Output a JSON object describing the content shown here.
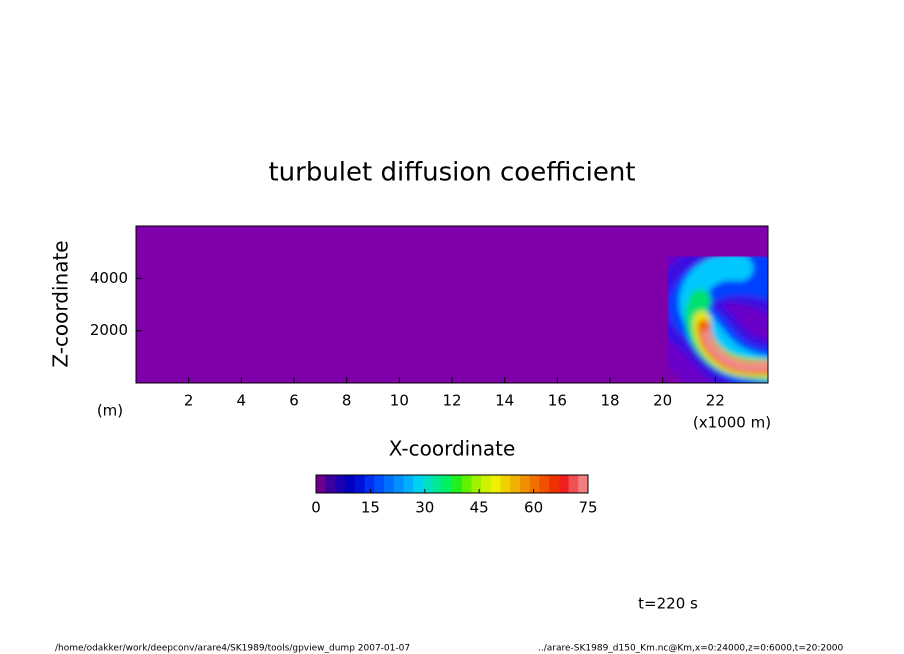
{
  "chart_data": {
    "type": "contour",
    "title": "turbulet diffusion coefficient",
    "x_label": "X-coordinate",
    "y_label": "Z-coordinate",
    "x_unit": "(x1000 m)",
    "y_unit": "(m)",
    "xlim": [
      0,
      24
    ],
    "xticks": [
      2,
      4,
      6,
      8,
      10,
      12,
      14,
      16,
      18,
      20,
      22
    ],
    "ylim": [
      0,
      6000
    ],
    "yticks": [
      2000,
      4000
    ],
    "colorbar": {
      "lim": [
        0,
        75
      ],
      "ticks": [
        0,
        15,
        30,
        45,
        60,
        75
      ],
      "colors": [
        "#6a0090",
        "#3a00a0",
        "#1a00b0",
        "#0000c0",
        "#0010d8",
        "#0030f0",
        "#0050ff",
        "#0070ff",
        "#0090ff",
        "#00b0ff",
        "#00d0f0",
        "#00e0c0",
        "#00e890",
        "#00f060",
        "#20f020",
        "#60f000",
        "#a0f000",
        "#d0f000",
        "#f0f000",
        "#f0d000",
        "#f0b000",
        "#f09000",
        "#f07000",
        "#f05000",
        "#f03000",
        "#f02020",
        "#f05050",
        "#f08080"
      ]
    },
    "annotation": "t=220 s",
    "footer_left": "/home/odakker/work/deepconv/arare4/SK1989/tools/gpview_dump  2007-01-07",
    "footer_right": "../arare-SK1989_d150_Km.nc@Km,x=0:24000,z=0:6000,t=20:2000"
  }
}
